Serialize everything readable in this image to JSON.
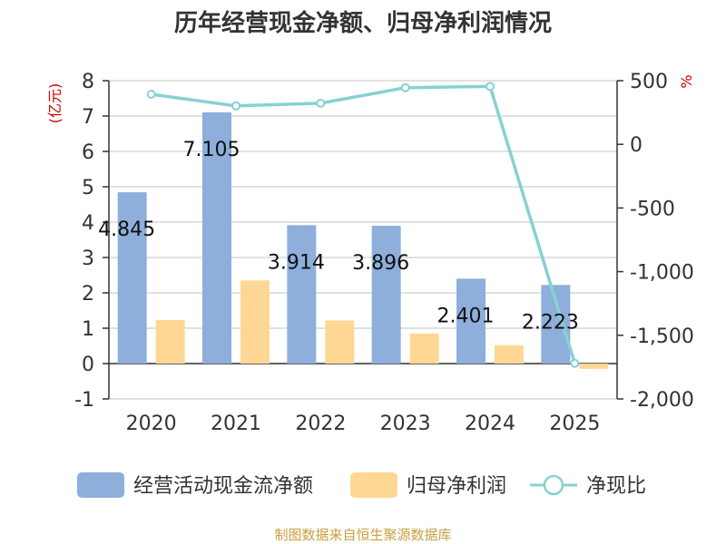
{
  "chart_data": {
    "type": "bar",
    "title": "历年经营现金净额、归母净利润情况",
    "categories": [
      "2020",
      "2021",
      "2022",
      "2023",
      "2024",
      "2025"
    ],
    "series": [
      {
        "name": "经营活动现金流净额",
        "axis": "left",
        "kind": "bar",
        "color": "#8eaedb",
        "values": [
          4.845,
          7.105,
          3.914,
          3.896,
          2.401,
          2.223
        ],
        "labels": [
          "4.845",
          "7.105",
          "3.914",
          "3.896",
          "2.401",
          "2.223"
        ]
      },
      {
        "name": "归母净利润",
        "axis": "left",
        "kind": "bar",
        "color": "#ffd795",
        "values": [
          1.23,
          2.35,
          1.22,
          0.85,
          0.52,
          -0.15
        ]
      },
      {
        "name": "净现比",
        "axis": "right",
        "kind": "line",
        "color": "#86d1d4",
        "values": [
          393,
          302,
          323,
          445,
          455,
          -1720
        ]
      }
    ],
    "y_left": {
      "unit": "(亿元)",
      "range": [
        -1,
        8
      ],
      "ticks": [
        "-1",
        "0",
        "1",
        "2",
        "3",
        "4",
        "5",
        "6",
        "7",
        "8"
      ]
    },
    "y_right": {
      "unit": "%",
      "range": [
        -2000,
        500
      ],
      "ticks": [
        "-2,000",
        "-1,500",
        "-1,000",
        "-500",
        "0",
        "500"
      ]
    },
    "grid": true,
    "legend": "bottom",
    "source": "制图数据来自恒生聚源数据库"
  }
}
